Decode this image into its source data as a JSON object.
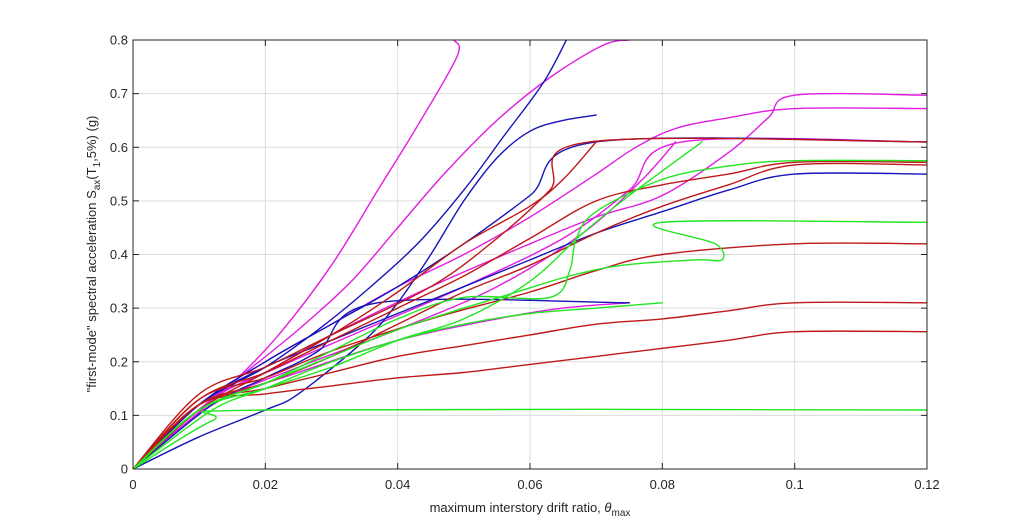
{
  "chart_data": {
    "type": "line",
    "title": "",
    "xlabel": {
      "main": "maximum interstory drift ratio, ",
      "symbol": "θ",
      "sub": "max"
    },
    "ylabel": {
      "p1": "\"first-mode\" spectral acceleration S",
      "sub1": "ax",
      "p2": "(T",
      "sub2": "1",
      "p3": ",5%) (g)"
    },
    "xlim": [
      0,
      0.12
    ],
    "ylim": [
      0,
      0.8
    ],
    "xticks": [
      "0",
      "0.02",
      "0.04",
      "0.06",
      "0.08",
      "0.1",
      "0.12"
    ],
    "yticks": [
      "0",
      "0.1",
      "0.2",
      "0.3",
      "0.4",
      "0.5",
      "0.6",
      "0.7",
      "0.8"
    ],
    "grid": true,
    "series_colors": {
      "magenta": "#e11de1",
      "blue": "#1515b8",
      "red": "#c01818",
      "green": "#22e622"
    },
    "series": [
      {
        "color": "magenta",
        "points": [
          [
            0,
            0
          ],
          [
            0.008,
            0.085
          ],
          [
            0.015,
            0.16
          ],
          [
            0.022,
            0.25
          ],
          [
            0.03,
            0.38
          ],
          [
            0.037,
            0.52
          ],
          [
            0.043,
            0.64
          ],
          [
            0.049,
            0.77
          ],
          [
            0.0485,
            0.8
          ]
        ]
      },
      {
        "color": "magenta",
        "points": [
          [
            0,
            0
          ],
          [
            0.008,
            0.09
          ],
          [
            0.016,
            0.17
          ],
          [
            0.025,
            0.26
          ],
          [
            0.033,
            0.35
          ],
          [
            0.04,
            0.45
          ],
          [
            0.047,
            0.55
          ],
          [
            0.055,
            0.65
          ],
          [
            0.063,
            0.73
          ],
          [
            0.071,
            0.79
          ],
          [
            0.075,
            0.8
          ]
        ]
      },
      {
        "color": "magenta",
        "points": [
          [
            0,
            0
          ],
          [
            0.01,
            0.12
          ],
          [
            0.02,
            0.2
          ],
          [
            0.03,
            0.27
          ],
          [
            0.04,
            0.34
          ],
          [
            0.05,
            0.4
          ],
          [
            0.06,
            0.47
          ],
          [
            0.07,
            0.55
          ],
          [
            0.076,
            0.6
          ],
          [
            0.082,
            0.635
          ],
          [
            0.09,
            0.655
          ],
          [
            0.1,
            0.672
          ],
          [
            0.12,
            0.672
          ]
        ]
      },
      {
        "color": "magenta",
        "points": [
          [
            0,
            0
          ],
          [
            0.01,
            0.12
          ],
          [
            0.02,
            0.18
          ],
          [
            0.03,
            0.25
          ],
          [
            0.045,
            0.34
          ],
          [
            0.06,
            0.42
          ],
          [
            0.07,
            0.47
          ],
          [
            0.08,
            0.51
          ],
          [
            0.09,
            0.59
          ],
          [
            0.096,
            0.655
          ],
          [
            0.1,
            0.697
          ],
          [
            0.12,
            0.697
          ]
        ]
      },
      {
        "color": "magenta",
        "points": [
          [
            0,
            0
          ],
          [
            0.012,
            0.13
          ],
          [
            0.022,
            0.19
          ],
          [
            0.035,
            0.26
          ],
          [
            0.05,
            0.34
          ],
          [
            0.065,
            0.43
          ],
          [
            0.075,
            0.52
          ],
          [
            0.083,
            0.61
          ],
          [
            0.12,
            0.61
          ]
        ]
      },
      {
        "color": "magenta",
        "points": [
          [
            0,
            0
          ],
          [
            0.012,
            0.12
          ],
          [
            0.025,
            0.19
          ],
          [
            0.04,
            0.26
          ],
          [
            0.055,
            0.34
          ],
          [
            0.068,
            0.44
          ],
          [
            0.077,
            0.54
          ],
          [
            0.082,
            0.61
          ]
        ]
      },
      {
        "color": "magenta",
        "points": [
          [
            0,
            0
          ],
          [
            0.012,
            0.12
          ],
          [
            0.025,
            0.18
          ],
          [
            0.04,
            0.24
          ],
          [
            0.055,
            0.28
          ],
          [
            0.065,
            0.3
          ],
          [
            0.075,
            0.31
          ]
        ]
      },
      {
        "color": "blue",
        "points": [
          [
            0,
            0
          ],
          [
            0.01,
            0.12
          ],
          [
            0.02,
            0.19
          ],
          [
            0.028,
            0.26
          ],
          [
            0.035,
            0.33
          ],
          [
            0.043,
            0.42
          ],
          [
            0.05,
            0.52
          ],
          [
            0.056,
            0.62
          ],
          [
            0.062,
            0.72
          ],
          [
            0.0655,
            0.8
          ]
        ]
      },
      {
        "color": "blue",
        "points": [
          [
            0,
            0
          ],
          [
            0.01,
            0.06
          ],
          [
            0.02,
            0.11
          ],
          [
            0.025,
            0.14
          ],
          [
            0.035,
            0.24
          ],
          [
            0.04,
            0.31
          ],
          [
            0.045,
            0.4
          ],
          [
            0.05,
            0.5
          ],
          [
            0.055,
            0.58
          ],
          [
            0.06,
            0.63
          ],
          [
            0.065,
            0.65
          ],
          [
            0.07,
            0.66
          ]
        ]
      },
      {
        "color": "blue",
        "points": [
          [
            0,
            0
          ],
          [
            0.01,
            0.12
          ],
          [
            0.02,
            0.2
          ],
          [
            0.03,
            0.27
          ],
          [
            0.04,
            0.34
          ],
          [
            0.05,
            0.42
          ],
          [
            0.06,
            0.51
          ],
          [
            0.07,
            0.61
          ],
          [
            0.12,
            0.61
          ]
        ]
      },
      {
        "color": "blue",
        "points": [
          [
            0,
            0
          ],
          [
            0.01,
            0.12
          ],
          [
            0.02,
            0.19
          ],
          [
            0.03,
            0.24
          ],
          [
            0.04,
            0.29
          ],
          [
            0.05,
            0.34
          ],
          [
            0.06,
            0.39
          ],
          [
            0.07,
            0.44
          ],
          [
            0.08,
            0.48
          ],
          [
            0.09,
            0.52
          ],
          [
            0.1,
            0.55
          ],
          [
            0.12,
            0.55
          ]
        ]
      },
      {
        "color": "blue",
        "points": [
          [
            0,
            0
          ],
          [
            0.012,
            0.12
          ],
          [
            0.02,
            0.17
          ],
          [
            0.028,
            0.22
          ],
          [
            0.037,
            0.31
          ],
          [
            0.075,
            0.31
          ]
        ]
      },
      {
        "color": "red",
        "points": [
          [
            0,
            0
          ],
          [
            0.01,
            0.14
          ],
          [
            0.02,
            0.19
          ],
          [
            0.03,
            0.25
          ],
          [
            0.045,
            0.34
          ],
          [
            0.055,
            0.43
          ],
          [
            0.063,
            0.52
          ],
          [
            0.069,
            0.61
          ],
          [
            0.12,
            0.61
          ]
        ]
      },
      {
        "color": "red",
        "points": [
          [
            0,
            0
          ],
          [
            0.01,
            0.13
          ],
          [
            0.02,
            0.18
          ],
          [
            0.03,
            0.24
          ],
          [
            0.04,
            0.3
          ],
          [
            0.05,
            0.36
          ],
          [
            0.06,
            0.43
          ],
          [
            0.07,
            0.5
          ],
          [
            0.08,
            0.53
          ],
          [
            0.09,
            0.55
          ],
          [
            0.1,
            0.572
          ],
          [
            0.12,
            0.572
          ]
        ]
      },
      {
        "color": "red",
        "points": [
          [
            0,
            0
          ],
          [
            0.01,
            0.13
          ],
          [
            0.02,
            0.17
          ],
          [
            0.03,
            0.22
          ],
          [
            0.045,
            0.28
          ],
          [
            0.06,
            0.33
          ],
          [
            0.07,
            0.37
          ],
          [
            0.08,
            0.4
          ],
          [
            0.1,
            0.42
          ],
          [
            0.12,
            0.42
          ]
        ]
      },
      {
        "color": "red",
        "points": [
          [
            0,
            0
          ],
          [
            0.01,
            0.12
          ],
          [
            0.02,
            0.15
          ],
          [
            0.03,
            0.18
          ],
          [
            0.04,
            0.21
          ],
          [
            0.05,
            0.23
          ],
          [
            0.06,
            0.25
          ],
          [
            0.07,
            0.27
          ],
          [
            0.08,
            0.28
          ],
          [
            0.09,
            0.295
          ],
          [
            0.1,
            0.31
          ],
          [
            0.12,
            0.31
          ]
        ]
      },
      {
        "color": "red",
        "points": [
          [
            0,
            0
          ],
          [
            0.01,
            0.12
          ],
          [
            0.02,
            0.14
          ],
          [
            0.03,
            0.155
          ],
          [
            0.04,
            0.17
          ],
          [
            0.05,
            0.18
          ],
          [
            0.06,
            0.195
          ],
          [
            0.07,
            0.21
          ],
          [
            0.08,
            0.225
          ],
          [
            0.09,
            0.24
          ],
          [
            0.1,
            0.256
          ],
          [
            0.12,
            0.256
          ]
        ]
      },
      {
        "color": "red",
        "points": [
          [
            0,
            0
          ],
          [
            0.01,
            0.11
          ],
          [
            0.02,
            0.18
          ],
          [
            0.03,
            0.25
          ],
          [
            0.04,
            0.33
          ],
          [
            0.05,
            0.42
          ],
          [
            0.06,
            0.49
          ],
          [
            0.065,
            0.54
          ],
          [
            0.07,
            0.61
          ]
        ]
      },
      {
        "color": "red",
        "points": [
          [
            0,
            0
          ],
          [
            0.01,
            0.12
          ],
          [
            0.02,
            0.16
          ],
          [
            0.03,
            0.21
          ],
          [
            0.04,
            0.27
          ],
          [
            0.05,
            0.33
          ],
          [
            0.06,
            0.38
          ],
          [
            0.07,
            0.44
          ],
          [
            0.08,
            0.49
          ],
          [
            0.09,
            0.53
          ],
          [
            0.1,
            0.567
          ],
          [
            0.12,
            0.567
          ]
        ]
      },
      {
        "color": "green",
        "points": [
          [
            0,
            0
          ],
          [
            0.012,
            0.09
          ],
          [
            0.02,
            0.11
          ],
          [
            0.12,
            0.11
          ]
        ]
      },
      {
        "color": "green",
        "points": [
          [
            0,
            0
          ],
          [
            0.012,
            0.11
          ],
          [
            0.02,
            0.15
          ],
          [
            0.03,
            0.2
          ],
          [
            0.04,
            0.24
          ],
          [
            0.05,
            0.27
          ],
          [
            0.06,
            0.29
          ],
          [
            0.07,
            0.3
          ],
          [
            0.08,
            0.31
          ]
        ]
      },
      {
        "color": "green",
        "points": [
          [
            0,
            0
          ],
          [
            0.01,
            0.11
          ],
          [
            0.02,
            0.16
          ],
          [
            0.03,
            0.21
          ],
          [
            0.04,
            0.26
          ],
          [
            0.05,
            0.3
          ],
          [
            0.058,
            0.33
          ],
          [
            0.066,
            0.36
          ],
          [
            0.074,
            0.38
          ],
          [
            0.085,
            0.39
          ],
          [
            0.089,
            0.39
          ],
          [
            0.088,
            0.42
          ],
          [
            0.08,
            0.46
          ],
          [
            0.12,
            0.46
          ]
        ]
      },
      {
        "color": "green",
        "points": [
          [
            0,
            0
          ],
          [
            0.01,
            0.11
          ],
          [
            0.02,
            0.16
          ],
          [
            0.03,
            0.22
          ],
          [
            0.04,
            0.28
          ],
          [
            0.05,
            0.32
          ],
          [
            0.063,
            0.32
          ],
          [
            0.066,
            0.37
          ],
          [
            0.067,
            0.43
          ],
          [
            0.07,
            0.48
          ],
          [
            0.08,
            0.54
          ],
          [
            0.09,
            0.565
          ],
          [
            0.1,
            0.575
          ],
          [
            0.12,
            0.575
          ]
        ]
      },
      {
        "color": "green",
        "points": [
          [
            0,
            0
          ],
          [
            0.01,
            0.11
          ],
          [
            0.02,
            0.15
          ],
          [
            0.03,
            0.19
          ],
          [
            0.04,
            0.24
          ],
          [
            0.05,
            0.28
          ],
          [
            0.06,
            0.35
          ],
          [
            0.068,
            0.44
          ],
          [
            0.075,
            0.51
          ],
          [
            0.086,
            0.61
          ]
        ]
      }
    ]
  }
}
